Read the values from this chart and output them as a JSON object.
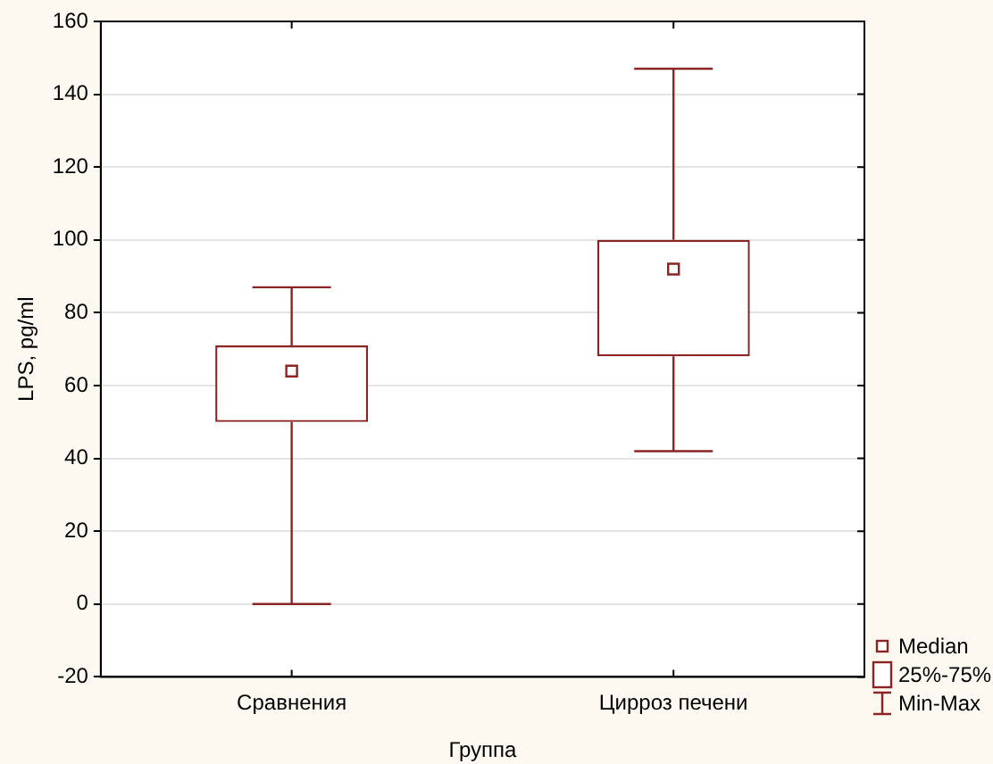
{
  "chart_data": {
    "type": "box",
    "xlabel": "Группа",
    "ylabel": "LPS, pg/ml",
    "categories": [
      "Сравнения",
      "Цирроз печени"
    ],
    "color": "#8b2525",
    "boxes": [
      {
        "low": 0,
        "q1": 50,
        "median": 64,
        "q3": 71,
        "high": 87
      },
      {
        "low": 42,
        "q1": 68,
        "median": 92,
        "q3": 100,
        "high": 147
      }
    ],
    "ylim": [
      -20,
      160
    ],
    "yticks": [
      -20,
      0,
      20,
      40,
      60,
      80,
      100,
      120,
      140,
      160
    ],
    "grid": "y",
    "annotations": [
      "Median",
      "25%-75%",
      "Min-Max"
    ]
  }
}
